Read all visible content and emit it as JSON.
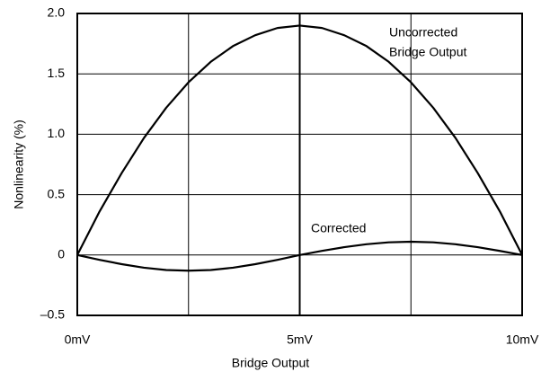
{
  "chart_data": {
    "type": "line",
    "xlabel": "Bridge Output",
    "ylabel": "Nonlinearity (%)",
    "annotations": [
      "Uncorrected",
      "Bridge Output",
      "Corrected"
    ],
    "x": [
      0,
      0.5,
      1,
      1.5,
      2,
      2.5,
      3,
      3.5,
      4,
      4.5,
      5,
      5.5,
      6,
      6.5,
      7,
      7.5,
      8,
      8.5,
      9,
      9.5,
      10
    ],
    "series": [
      {
        "color": "#000000",
        "values": [
          0,
          0.36,
          0.68,
          0.97,
          1.22,
          1.43,
          1.6,
          1.73,
          1.82,
          1.88,
          1.9,
          1.88,
          1.82,
          1.73,
          1.6,
          1.43,
          1.22,
          0.97,
          0.68,
          0.36,
          0
        ]
      },
      {
        "color": "#000000",
        "values": [
          0,
          -0.04,
          -0.076,
          -0.105,
          -0.124,
          -0.13,
          -0.124,
          -0.105,
          -0.076,
          -0.04,
          0,
          0.034,
          0.065,
          0.089,
          0.105,
          0.11,
          0.105,
          0.089,
          0.065,
          0.034,
          0
        ]
      }
    ],
    "xlim": [
      0,
      10
    ],
    "xticks": [
      {
        "value": 0,
        "label": "0mV"
      },
      {
        "value": 2.5,
        "label": null
      },
      {
        "value": 5,
        "label": "5mV"
      },
      {
        "value": 7.5,
        "label": null
      },
      {
        "value": 10,
        "label": "10mV"
      }
    ],
    "ylim": [
      -0.5,
      2
    ],
    "yticks": [
      {
        "value": -0.5,
        "label": "–0.5"
      },
      0,
      0.5,
      {
        "value": 1,
        "label": "1.0"
      },
      1.5,
      {
        "value": 2,
        "label": "2.0"
      }
    ],
    "grid": true
  }
}
